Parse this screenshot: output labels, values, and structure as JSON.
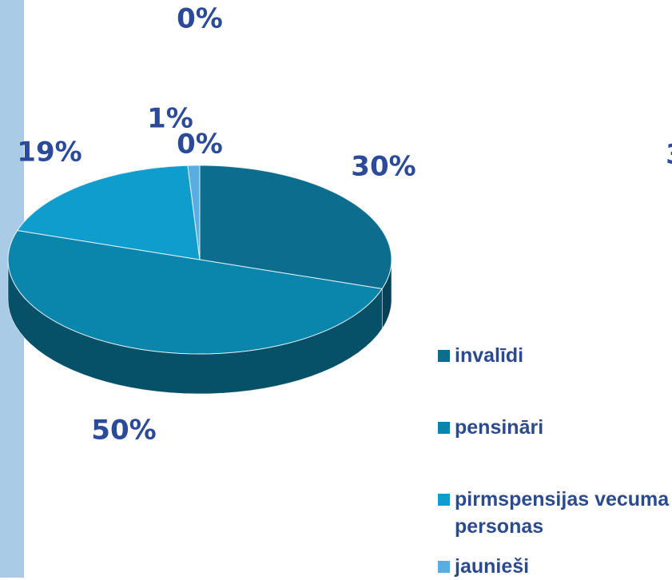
{
  "chart_data": {
    "type": "pie",
    "categories": [
      "invalīdi",
      "pensināri",
      "pirmspensijas vecuma personas",
      "jaunieši",
      null,
      null
    ],
    "values": [
      30,
      50,
      19,
      1,
      0,
      0
    ],
    "value_labels": [
      "30%",
      "50%",
      "19%",
      "1%",
      "0%",
      "0%"
    ],
    "colors": [
      "#0c6d8e",
      "#0a86ad",
      "#0e9dcc",
      "#5aaedf",
      "#3a8fc0",
      "#3a8fc0"
    ],
    "annotations": [
      "3"
    ]
  }
}
